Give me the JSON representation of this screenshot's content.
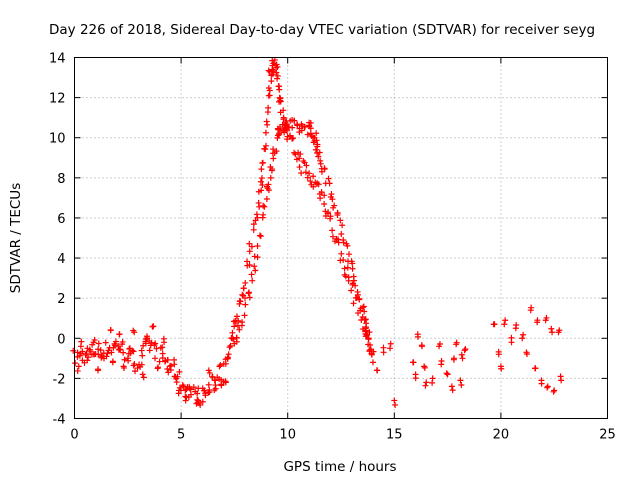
{
  "chart_data": {
    "type": "scatter",
    "title": "Day 226 of 2018, Sidereal Day-to-day VTEC variation (SDTVAR) for receiver seyg",
    "xlabel": "GPS time / hours",
    "ylabel": "SDTVAR / TECUs",
    "xlim": [
      0,
      25
    ],
    "ylim": [
      -4,
      14
    ],
    "xticks": [
      "0",
      "5",
      "10",
      "15",
      "20",
      "25"
    ],
    "yticks": [
      "-4",
      "-2",
      "0",
      "2",
      "4",
      "6",
      "8",
      "10",
      "12",
      "14"
    ],
    "grid": true,
    "marker": "+",
    "color": "#ff0000",
    "series": [
      {
        "name": "SDTVAR",
        "track_a": [
          [
            0.0,
            -1.0
          ],
          [
            0.5,
            -0.8
          ],
          [
            1.0,
            -0.6
          ],
          [
            1.5,
            -0.6
          ],
          [
            2.0,
            -0.3
          ],
          [
            2.5,
            -0.8
          ],
          [
            3.0,
            -1.3
          ],
          [
            3.5,
            -0.3
          ],
          [
            4.0,
            -0.8
          ],
          [
            4.5,
            -1.3
          ],
          [
            5.0,
            -2.3
          ],
          [
            5.5,
            -2.8
          ],
          [
            6.0,
            -2.9
          ],
          [
            6.5,
            -2.3
          ],
          [
            7.0,
            -1.8
          ],
          [
            7.3,
            -0.5
          ],
          [
            7.6,
            1.0
          ],
          [
            8.0,
            3.0
          ],
          [
            8.5,
            6.0
          ],
          [
            8.8,
            8.0
          ],
          [
            9.0,
            11.0
          ],
          [
            9.2,
            13.5
          ],
          [
            9.4,
            13.6
          ],
          [
            9.6,
            12.5
          ],
          [
            9.8,
            11.0
          ],
          [
            10.0,
            10.0
          ],
          [
            10.5,
            9.0
          ],
          [
            11.0,
            8.0
          ],
          [
            11.5,
            7.5
          ],
          [
            12.0,
            6.0
          ],
          [
            12.5,
            4.0
          ],
          [
            13.0,
            2.5
          ],
          [
            13.5,
            1.0
          ],
          [
            13.8,
            0.0
          ],
          [
            14.0,
            -1.2
          ]
        ],
        "track_b": [
          [
            7.5,
            -0.5
          ],
          [
            8.0,
            1.5
          ],
          [
            8.5,
            4.0
          ],
          [
            9.0,
            7.0
          ],
          [
            9.3,
            9.0
          ],
          [
            9.6,
            10.5
          ],
          [
            10.0,
            10.6
          ],
          [
            10.5,
            10.5
          ],
          [
            11.0,
            10.5
          ],
          [
            11.3,
            10.0
          ],
          [
            11.5,
            9.0
          ],
          [
            12.0,
            7.5
          ],
          [
            12.5,
            5.5
          ],
          [
            13.0,
            3.5
          ],
          [
            13.5,
            1.5
          ],
          [
            13.8,
            0.0
          ]
        ],
        "scatter": [
          [
            0.2,
            -1.4
          ],
          [
            0.3,
            -0.4
          ],
          [
            0.6,
            -1.1
          ],
          [
            0.9,
            -0.2
          ],
          [
            1.1,
            -1.6
          ],
          [
            1.3,
            -0.9
          ],
          [
            1.7,
            0.4
          ],
          [
            1.8,
            -1.2
          ],
          [
            2.1,
            0.2
          ],
          [
            2.3,
            -1.4
          ],
          [
            2.6,
            -0.5
          ],
          [
            2.8,
            0.3
          ],
          [
            3.2,
            -1.8
          ],
          [
            3.4,
            0.1
          ],
          [
            3.7,
            0.6
          ],
          [
            3.9,
            -1.5
          ],
          [
            4.2,
            -0.2
          ],
          [
            4.4,
            -1.7
          ],
          [
            4.7,
            -1.9
          ],
          [
            4.9,
            -2.6
          ],
          [
            5.2,
            -2.9
          ],
          [
            5.4,
            -2.5
          ],
          [
            5.8,
            -3.1
          ],
          [
            6.1,
            -2.6
          ],
          [
            6.3,
            -1.6
          ],
          [
            6.6,
            -2.1
          ],
          [
            6.8,
            -1.4
          ],
          [
            7.1,
            -2.2
          ],
          [
            14.2,
            -1.6
          ],
          [
            14.5,
            -0.7
          ],
          [
            14.8,
            -0.5
          ],
          [
            15.0,
            -3.1
          ],
          [
            15.9,
            -1.2
          ],
          [
            16.0,
            -1.8
          ],
          [
            16.1,
            0.2
          ],
          [
            16.3,
            -0.4
          ],
          [
            16.4,
            -1.4
          ],
          [
            16.5,
            -2.2
          ],
          [
            16.8,
            -2.0
          ],
          [
            17.1,
            -0.4
          ],
          [
            17.2,
            -1.3
          ],
          [
            17.5,
            -1.8
          ],
          [
            17.7,
            -2.4
          ],
          [
            17.8,
            -1.0
          ],
          [
            17.9,
            -0.3
          ],
          [
            18.1,
            -2.1
          ],
          [
            18.2,
            -1.0
          ],
          [
            18.3,
            -0.6
          ],
          [
            19.7,
            0.7
          ],
          [
            19.9,
            -0.8
          ],
          [
            20.0,
            -1.4
          ],
          [
            20.2,
            0.9
          ],
          [
            20.5,
            -0.2
          ],
          [
            20.7,
            0.5
          ],
          [
            21.0,
            0.0
          ],
          [
            21.2,
            -0.7
          ],
          [
            21.4,
            1.4
          ],
          [
            21.6,
            -1.5
          ],
          [
            21.7,
            0.8
          ],
          [
            21.9,
            -2.1
          ],
          [
            22.1,
            0.9
          ],
          [
            22.2,
            -2.4
          ],
          [
            22.4,
            0.3
          ],
          [
            22.5,
            -2.6
          ],
          [
            22.7,
            0.3
          ],
          [
            22.8,
            -1.9
          ]
        ]
      }
    ]
  }
}
